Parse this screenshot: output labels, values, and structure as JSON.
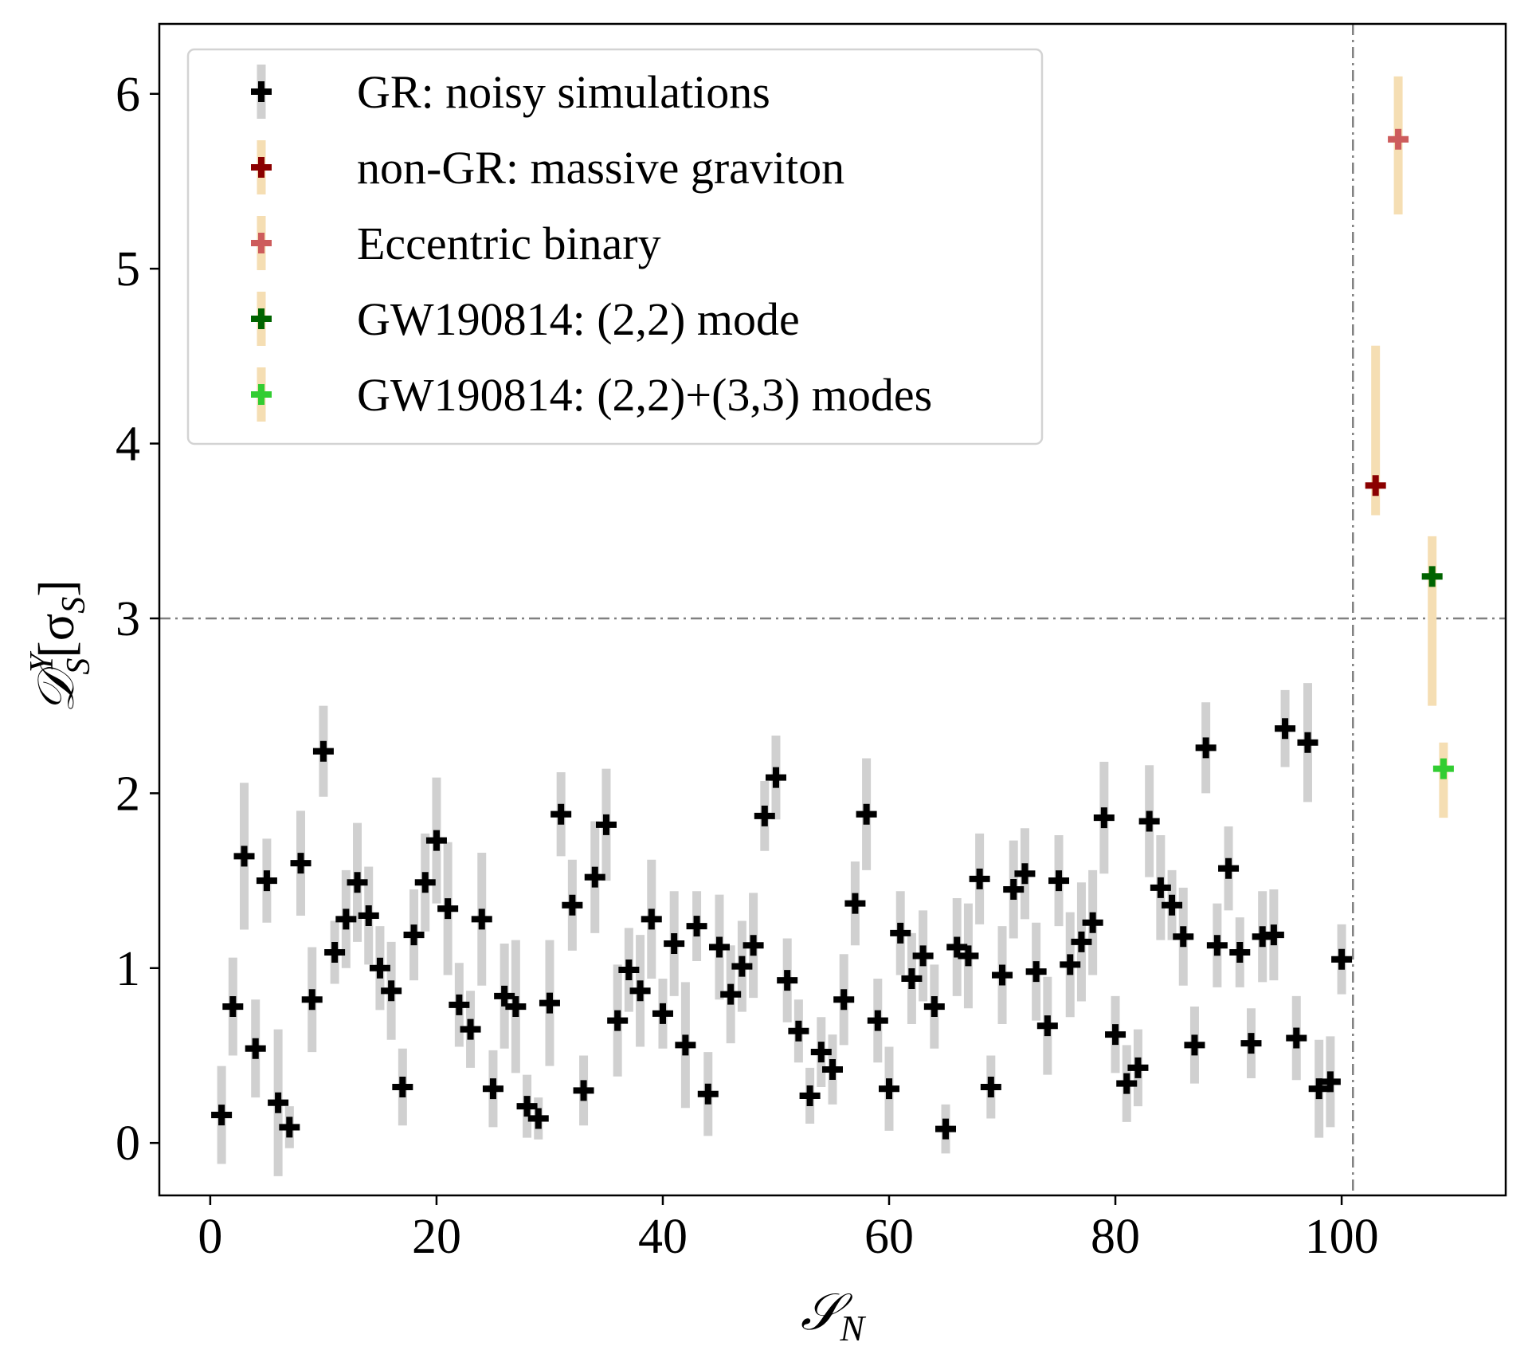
{
  "chart_data": {
    "type": "scatter",
    "xlabel": "𝒮",
    "xlabel_sub": "N",
    "ylabel_main": "𝒟",
    "ylabel_sup": "Y",
    "ylabel_sub": "S",
    "ylabel_bracket": "[σ",
    "ylabel_bracket_sub": "S",
    "ylabel_close": "]",
    "xlim": [
      -4.5,
      114.5
    ],
    "ylim": [
      -0.3,
      6.4
    ],
    "xticks": [
      0,
      20,
      40,
      60,
      80,
      100
    ],
    "yticks": [
      0,
      1,
      2,
      3,
      4,
      5,
      6
    ],
    "reference_lines": {
      "horizontal_y": 3,
      "vertical_x": 101
    },
    "grid": false,
    "legend_position": "top-left",
    "colors": {
      "reference_line": "#808080",
      "gr_errorbar": "#d0d0d0",
      "nongr_errorbar": "#f5deb3"
    },
    "series": [
      {
        "name": "GR: noisy simulations",
        "color": "#000000",
        "errcolor": "#d0d0d0",
        "points": [
          [
            1,
            0.16,
            0.28
          ],
          [
            2,
            0.78,
            0.28
          ],
          [
            3,
            1.64,
            0.42
          ],
          [
            4,
            0.54,
            0.28
          ],
          [
            5,
            1.5,
            0.24
          ],
          [
            6,
            0.23,
            0.42
          ],
          [
            7,
            0.09,
            0.12
          ],
          [
            8,
            1.6,
            0.3
          ],
          [
            9,
            0.82,
            0.3
          ],
          [
            10,
            2.24,
            0.26
          ],
          [
            11,
            1.09,
            0.18
          ],
          [
            12,
            1.28,
            0.28
          ],
          [
            13,
            1.49,
            0.34
          ],
          [
            14,
            1.3,
            0.28
          ],
          [
            15,
            1.0,
            0.24
          ],
          [
            16,
            0.87,
            0.28
          ],
          [
            17,
            0.32,
            0.22
          ],
          [
            18,
            1.19,
            0.26
          ],
          [
            19,
            1.49,
            0.28
          ],
          [
            20,
            1.73,
            0.36
          ],
          [
            21,
            1.34,
            0.38
          ],
          [
            22,
            0.79,
            0.24
          ],
          [
            23,
            0.65,
            0.22
          ],
          [
            24,
            1.28,
            0.38
          ],
          [
            25,
            0.31,
            0.22
          ],
          [
            26,
            0.84,
            0.3
          ],
          [
            27,
            0.78,
            0.38
          ],
          [
            28,
            0.21,
            0.18
          ],
          [
            29,
            0.14,
            0.12
          ],
          [
            30,
            0.8,
            0.36
          ],
          [
            31,
            1.88,
            0.24
          ],
          [
            32,
            1.36,
            0.26
          ],
          [
            33,
            0.3,
            0.2
          ],
          [
            34,
            1.52,
            0.32
          ],
          [
            35,
            1.82,
            0.32
          ],
          [
            36,
            0.7,
            0.32
          ],
          [
            37,
            0.99,
            0.24
          ],
          [
            38,
            0.87,
            0.32
          ],
          [
            39,
            1.28,
            0.34
          ],
          [
            40,
            0.74,
            0.2
          ],
          [
            41,
            1.14,
            0.3
          ],
          [
            42,
            0.56,
            0.36
          ],
          [
            43,
            1.24,
            0.2
          ],
          [
            44,
            0.28,
            0.24
          ],
          [
            45,
            1.12,
            0.3
          ],
          [
            46,
            0.85,
            0.28
          ],
          [
            47,
            1.01,
            0.26
          ],
          [
            48,
            1.13,
            0.3
          ],
          [
            49,
            1.87,
            0.2
          ],
          [
            50,
            2.09,
            0.24
          ],
          [
            51,
            0.93,
            0.24
          ],
          [
            52,
            0.64,
            0.18
          ],
          [
            53,
            0.27,
            0.16
          ],
          [
            54,
            0.52,
            0.2
          ],
          [
            55,
            0.42,
            0.2
          ],
          [
            56,
            0.82,
            0.26
          ],
          [
            57,
            1.37,
            0.24
          ],
          [
            58,
            1.88,
            0.32
          ],
          [
            59,
            0.7,
            0.24
          ],
          [
            60,
            0.31,
            0.24
          ],
          [
            61,
            1.2,
            0.24
          ],
          [
            62,
            0.94,
            0.26
          ],
          [
            63,
            1.07,
            0.26
          ],
          [
            64,
            0.78,
            0.24
          ],
          [
            65,
            0.08,
            0.14
          ],
          [
            66,
            1.12,
            0.28
          ],
          [
            67,
            1.07,
            0.3
          ],
          [
            68,
            1.51,
            0.26
          ],
          [
            69,
            0.32,
            0.18
          ],
          [
            70,
            0.96,
            0.28
          ],
          [
            71,
            1.45,
            0.28
          ],
          [
            72,
            1.54,
            0.26
          ],
          [
            73,
            0.98,
            0.28
          ],
          [
            74,
            0.67,
            0.28
          ],
          [
            75,
            1.5,
            0.26
          ],
          [
            76,
            1.02,
            0.3
          ],
          [
            77,
            1.15,
            0.34
          ],
          [
            78,
            1.26,
            0.3
          ],
          [
            79,
            1.86,
            0.32
          ],
          [
            80,
            0.62,
            0.22
          ],
          [
            81,
            0.34,
            0.22
          ],
          [
            82,
            0.43,
            0.22
          ],
          [
            83,
            1.84,
            0.32
          ],
          [
            84,
            1.46,
            0.3
          ],
          [
            85,
            1.36,
            0.2
          ],
          [
            86,
            1.18,
            0.28
          ],
          [
            87,
            0.56,
            0.22
          ],
          [
            88,
            2.26,
            0.26
          ],
          [
            89,
            1.13,
            0.24
          ],
          [
            90,
            1.57,
            0.24
          ],
          [
            91,
            1.09,
            0.2
          ],
          [
            92,
            0.57,
            0.2
          ],
          [
            93,
            1.18,
            0.26
          ],
          [
            94,
            1.19,
            0.26
          ],
          [
            95,
            2.37,
            0.22
          ],
          [
            96,
            0.6,
            0.24
          ],
          [
            97,
            2.29,
            0.34
          ],
          [
            98,
            0.31,
            0.28
          ],
          [
            99,
            0.35,
            0.26
          ],
          [
            100,
            1.05,
            0.2
          ]
        ]
      },
      {
        "name": "non-GR: massive graviton",
        "color": "#8b0000",
        "errcolor": "#f5deb3",
        "points": [
          [
            103,
            3.76,
            0.17,
            0.8
          ]
        ]
      },
      {
        "name": "Eccentric binary",
        "color": "#cd5c5c",
        "errcolor": "#f5deb3",
        "points": [
          [
            105,
            5.74,
            0.43,
            0.36
          ]
        ]
      },
      {
        "name": "GW190814: (2,2) mode",
        "color": "#006400",
        "errcolor": "#f5deb3",
        "points": [
          [
            108,
            3.24,
            0.74,
            0.23
          ]
        ]
      },
      {
        "name": "GW190814: (2,2)+(3,3) modes",
        "color": "#32cd32",
        "errcolor": "#f5deb3",
        "points": [
          [
            109,
            2.14,
            0.28,
            0.15
          ]
        ]
      }
    ]
  }
}
